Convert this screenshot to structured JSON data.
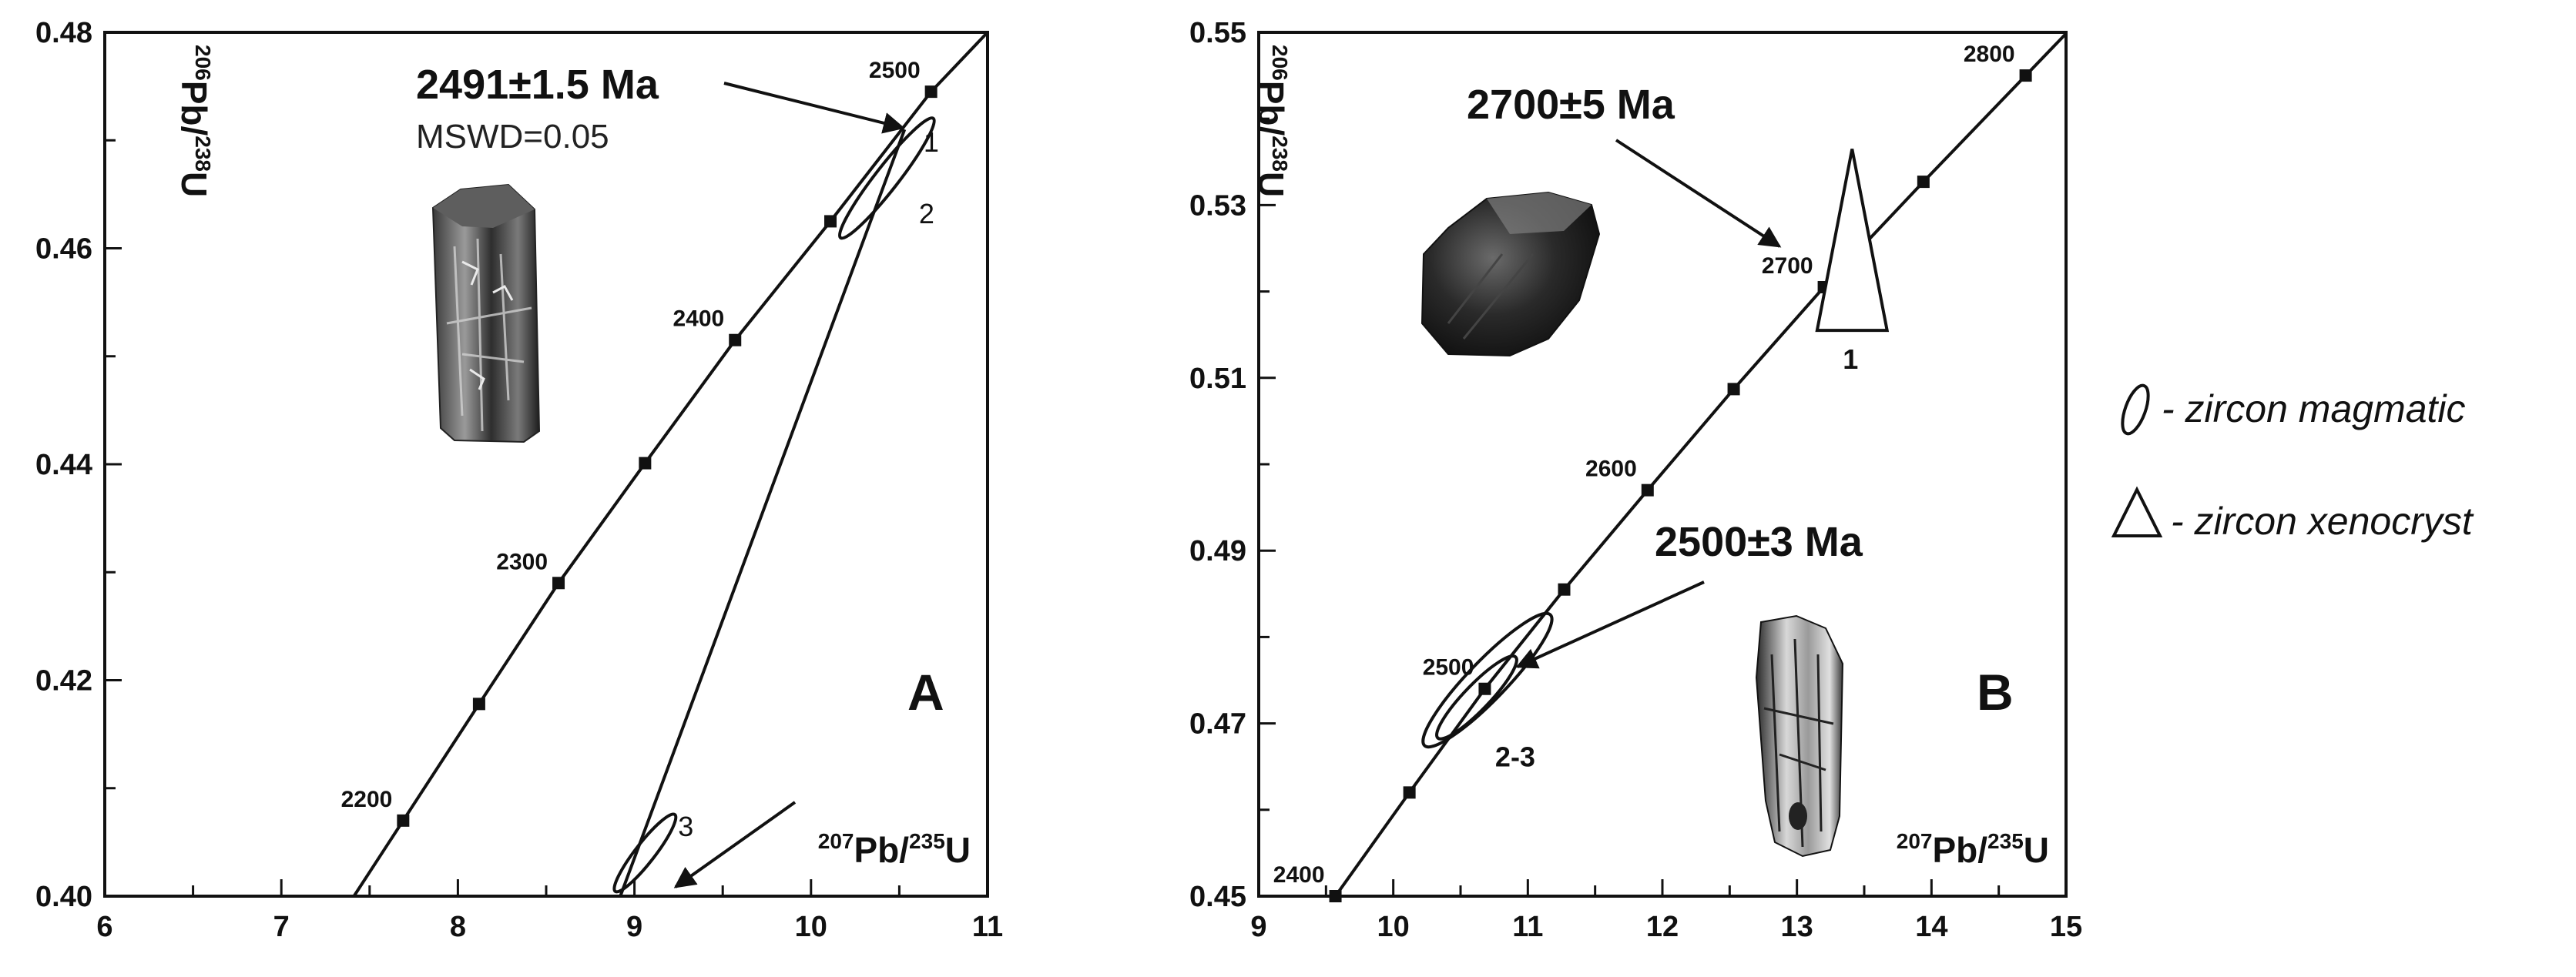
{
  "chart_data": [
    {
      "panel": "A",
      "type": "scatter",
      "title": "",
      "xlabel": {
        "sup1": "207",
        "base1": "Pb/",
        "sup2": "235",
        "base2": "U"
      },
      "ylabel": {
        "sup1": "206",
        "base1": "Pb/",
        "sup2": "238",
        "base2": "U"
      },
      "xlim": [
        6,
        11
      ],
      "ylim": [
        0.4,
        0.48
      ],
      "xticks": [
        6,
        7,
        8,
        9,
        10,
        11
      ],
      "xtick_labels": [
        "6",
        "7",
        "8",
        "9",
        "10",
        "11"
      ],
      "yticks": [
        0.4,
        0.42,
        0.44,
        0.46,
        0.48
      ],
      "ytick_labels": [
        "0.40",
        "0.42",
        "0.44",
        "0.46",
        "0.48"
      ],
      "concordia_ages": [
        {
          "age": 2200,
          "x": 7.69,
          "y": 0.407,
          "label": "2200"
        },
        {
          "age": 2250,
          "x": 8.12,
          "y": 0.4178
        },
        {
          "age": 2300,
          "x": 8.57,
          "y": 0.429,
          "label": "2300"
        },
        {
          "age": 2350,
          "x": 9.06,
          "y": 0.4401
        },
        {
          "age": 2400,
          "x": 9.57,
          "y": 0.4515,
          "label": "2400"
        },
        {
          "age": 2450,
          "x": 10.11,
          "y": 0.4625
        },
        {
          "age": 2500,
          "x": 10.68,
          "y": 0.4745,
          "label": "2500"
        }
      ],
      "discordia": {
        "from": [
          8.92,
          0.4
        ],
        "to": [
          10.53,
          0.471
        ]
      },
      "ellipses": [
        {
          "label": "1",
          "cx": 10.43,
          "cy": 0.4665,
          "rx": 0.12,
          "ry": 0.007,
          "label2": "2"
        },
        {
          "label": "3",
          "cx": 9.06,
          "cy": 0.404,
          "rx": 0.1,
          "ry": 0.0045
        }
      ],
      "annotation": {
        "age": "2491±1.5 Ma",
        "mswd": "MSWD=0.05"
      },
      "panel_letter": "A"
    },
    {
      "panel": "B",
      "type": "scatter",
      "title": "",
      "xlabel": {
        "sup1": "207",
        "base1": "Pb/",
        "sup2": "235",
        "base2": "U"
      },
      "ylabel": {
        "sup1": "206",
        "base1": "Pb/",
        "sup2": "238",
        "base2": "U"
      },
      "xlim": [
        9,
        15
      ],
      "ylim": [
        0.45,
        0.55
      ],
      "xticks": [
        9,
        10,
        11,
        12,
        13,
        14,
        15
      ],
      "xtick_labels": [
        "9",
        "10",
        "11",
        "12",
        "13",
        "14",
        "15"
      ],
      "yticks": [
        0.45,
        0.47,
        0.49,
        0.51,
        0.53,
        0.55
      ],
      "ytick_labels": [
        "0.45",
        "0.47",
        "0.49",
        "0.51",
        "0.53",
        "0.55"
      ],
      "concordia_ages": [
        {
          "age": 2400,
          "x": 9.57,
          "y": 0.45,
          "label": "2400"
        },
        {
          "age": 2450,
          "x": 10.12,
          "y": 0.462
        },
        {
          "age": 2500,
          "x": 10.68,
          "y": 0.474,
          "label": "2500"
        },
        {
          "age": 2550,
          "x": 11.27,
          "y": 0.4855
        },
        {
          "age": 2600,
          "x": 11.89,
          "y": 0.497,
          "label": "2600"
        },
        {
          "age": 2650,
          "x": 12.53,
          "y": 0.5087
        },
        {
          "age": 2700,
          "x": 13.2,
          "y": 0.5205,
          "label": "2700"
        },
        {
          "age": 2750,
          "x": 13.94,
          "y": 0.5327
        },
        {
          "age": 2800,
          "x": 14.7,
          "y": 0.545,
          "label": "2800"
        }
      ],
      "ellipses": [
        {
          "label": "2-3",
          "cx": 10.7,
          "cy": 0.475,
          "rx": 0.26,
          "ry": 0.0105
        },
        {
          "label": "",
          "cx": 10.62,
          "cy": 0.473,
          "rx": 0.17,
          "ry": 0.0065
        }
      ],
      "triangle": {
        "label": "1",
        "apex": [
          13.41,
          0.5365
        ],
        "base": [
          [
            13.15,
            0.5155
          ],
          [
            13.67,
            0.5155
          ]
        ]
      },
      "annotations": {
        "upper": "2700±5 Ma",
        "lower": "2500±3 Ma"
      },
      "panel_letter": "B"
    }
  ],
  "legend": {
    "items": [
      {
        "icon": "ellipse-icon",
        "label": "- zircon magmatic"
      },
      {
        "icon": "triangle-icon",
        "label": "- zircon xenocryst"
      }
    ]
  },
  "colors": {
    "ink": "#111111",
    "crystal_dark": "#1a1a1a",
    "crystal_mid": "#5a5a5a",
    "crystal_light": "#bdbdbd"
  }
}
